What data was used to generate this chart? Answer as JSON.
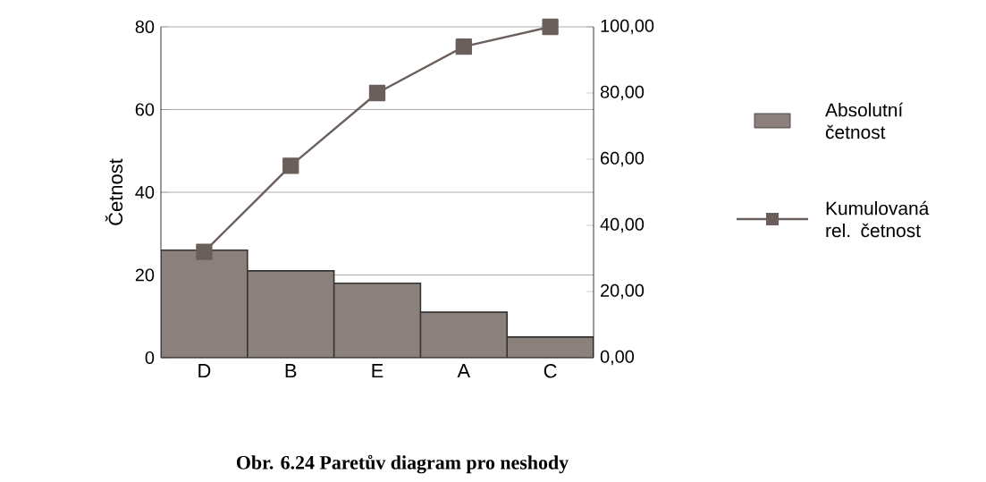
{
  "chart_data": {
    "type": "bar",
    "categories": [
      "D",
      "B",
      "E",
      "A",
      "C"
    ],
    "series": [
      {
        "name": "Absolutní četnost",
        "color": "#8c807c",
        "values": [
          26,
          21,
          18,
          11,
          5
        ]
      },
      {
        "name": "Kumulovaná rel. četnost",
        "type": "line",
        "axis": "y2",
        "color": "#6b5f5c",
        "values": [
          32,
          58,
          80,
          94,
          100
        ]
      }
    ],
    "ylabel": "Četnost",
    "ylim": [
      0,
      80
    ],
    "yticks": [
      0,
      20,
      40,
      60,
      80
    ],
    "y2lim": [
      0,
      100
    ],
    "y2ticks": [
      {
        "value": 0,
        "label": "0,00"
      },
      {
        "value": 20,
        "label": "20,00"
      },
      {
        "value": 40,
        "label": "40,00"
      },
      {
        "value": 60,
        "label": "60,00"
      },
      {
        "value": 80,
        "label": "80,00"
      },
      {
        "value": 100,
        "label": "100,00"
      }
    ],
    "grid": "y",
    "legend": "right",
    "marker": "square",
    "annotations": [
      "Obr. 6.24 Paretův diagram pro neshody"
    ]
  }
}
